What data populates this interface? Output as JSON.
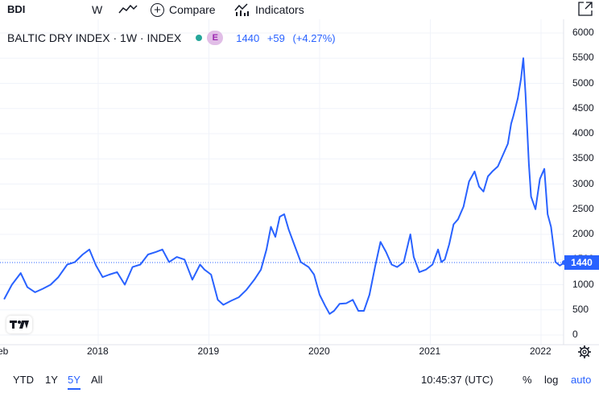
{
  "toolbar": {
    "symbol": "BDI",
    "interval": "W",
    "compare_label": "Compare",
    "indicators_label": "Indicators"
  },
  "legend": {
    "title": "BALTIC DRY INDEX · 1W · INDEX",
    "badge": "E",
    "last": "1440",
    "change": "+59",
    "change_pct": "(+4.27%)"
  },
  "price_axis": {
    "labels": [
      "6000",
      "5500",
      "5000",
      "4500",
      "4000",
      "3500",
      "3000",
      "2500",
      "2000",
      "1500",
      "1000",
      "500",
      "0"
    ],
    "last_price": "1440"
  },
  "time_axis": {
    "labels": [
      "eb",
      "2018",
      "2019",
      "2020",
      "2021",
      "2022"
    ]
  },
  "bottom": {
    "ranges": [
      "YTD",
      "1Y",
      "5Y",
      "All"
    ],
    "active_range": "5Y",
    "clock": "10:45:37 (UTC)",
    "percent": "%",
    "log": "log",
    "auto": "auto"
  },
  "colors": {
    "line": "#2962ff",
    "accent": "#2962ff",
    "badge_bg": "#e1bee7",
    "badge_fg": "#9c27b0",
    "dot": "#26a69a"
  },
  "chart_data": {
    "type": "line",
    "title": "",
    "xlabel": "",
    "ylabel": "",
    "ylim": [
      0,
      6000
    ],
    "series": [
      {
        "values": [
          [
            2017.15,
            710
          ],
          [
            2017.22,
            1000
          ],
          [
            2017.3,
            1230
          ],
          [
            2017.36,
            950
          ],
          [
            2017.43,
            850
          ],
          [
            2017.5,
            920
          ],
          [
            2017.57,
            1000
          ],
          [
            2017.64,
            1150
          ],
          [
            2017.72,
            1400
          ],
          [
            2017.79,
            1450
          ],
          [
            2017.86,
            1600
          ],
          [
            2017.92,
            1700
          ],
          [
            2017.98,
            1380
          ],
          [
            2018.04,
            1150
          ],
          [
            2018.1,
            1200
          ],
          [
            2018.17,
            1250
          ],
          [
            2018.24,
            1000
          ],
          [
            2018.31,
            1350
          ],
          [
            2018.38,
            1400
          ],
          [
            2018.45,
            1600
          ],
          [
            2018.52,
            1650
          ],
          [
            2018.58,
            1700
          ],
          [
            2018.64,
            1450
          ],
          [
            2018.71,
            1550
          ],
          [
            2018.78,
            1500
          ],
          [
            2018.85,
            1100
          ],
          [
            2018.92,
            1400
          ],
          [
            2018.96,
            1300
          ],
          [
            2019.02,
            1200
          ],
          [
            2019.08,
            700
          ],
          [
            2019.13,
            600
          ],
          [
            2019.2,
            680
          ],
          [
            2019.27,
            750
          ],
          [
            2019.34,
            900
          ],
          [
            2019.41,
            1100
          ],
          [
            2019.47,
            1300
          ],
          [
            2019.52,
            1700
          ],
          [
            2019.56,
            2150
          ],
          [
            2019.6,
            1950
          ],
          [
            2019.64,
            2350
          ],
          [
            2019.68,
            2400
          ],
          [
            2019.72,
            2100
          ],
          [
            2019.77,
            1800
          ],
          [
            2019.83,
            1450
          ],
          [
            2019.9,
            1350
          ],
          [
            2019.95,
            1200
          ],
          [
            2020.0,
            800
          ],
          [
            2020.05,
            580
          ],
          [
            2020.09,
            420
          ],
          [
            2020.13,
            480
          ],
          [
            2020.18,
            620
          ],
          [
            2020.24,
            630
          ],
          [
            2020.3,
            700
          ],
          [
            2020.35,
            480
          ],
          [
            2020.4,
            480
          ],
          [
            2020.45,
            800
          ],
          [
            2020.5,
            1350
          ],
          [
            2020.55,
            1850
          ],
          [
            2020.6,
            1650
          ],
          [
            2020.65,
            1400
          ],
          [
            2020.7,
            1350
          ],
          [
            2020.76,
            1450
          ],
          [
            2020.82,
            2000
          ],
          [
            2020.85,
            1550
          ],
          [
            2020.9,
            1250
          ],
          [
            2020.96,
            1300
          ],
          [
            2021.02,
            1400
          ],
          [
            2021.07,
            1700
          ],
          [
            2021.1,
            1450
          ],
          [
            2021.13,
            1500
          ],
          [
            2021.17,
            1800
          ],
          [
            2021.21,
            2200
          ],
          [
            2021.25,
            2300
          ],
          [
            2021.3,
            2550
          ],
          [
            2021.35,
            3050
          ],
          [
            2021.4,
            3250
          ],
          [
            2021.44,
            2950
          ],
          [
            2021.48,
            2850
          ],
          [
            2021.52,
            3150
          ],
          [
            2021.56,
            3250
          ],
          [
            2021.61,
            3350
          ],
          [
            2021.66,
            3600
          ],
          [
            2021.7,
            3800
          ],
          [
            2021.73,
            4200
          ],
          [
            2021.75,
            4350
          ],
          [
            2021.79,
            4700
          ],
          [
            2021.82,
            5100
          ],
          [
            2021.84,
            5500
          ],
          [
            2021.86,
            4800
          ],
          [
            2021.89,
            3400
          ],
          [
            2021.91,
            2750
          ],
          [
            2021.95,
            2500
          ],
          [
            2021.99,
            3100
          ],
          [
            2022.03,
            3300
          ],
          [
            2022.06,
            2400
          ],
          [
            2022.09,
            2150
          ],
          [
            2022.13,
            1450
          ],
          [
            2022.17,
            1380
          ],
          [
            2022.21,
            1440
          ]
        ]
      }
    ]
  }
}
